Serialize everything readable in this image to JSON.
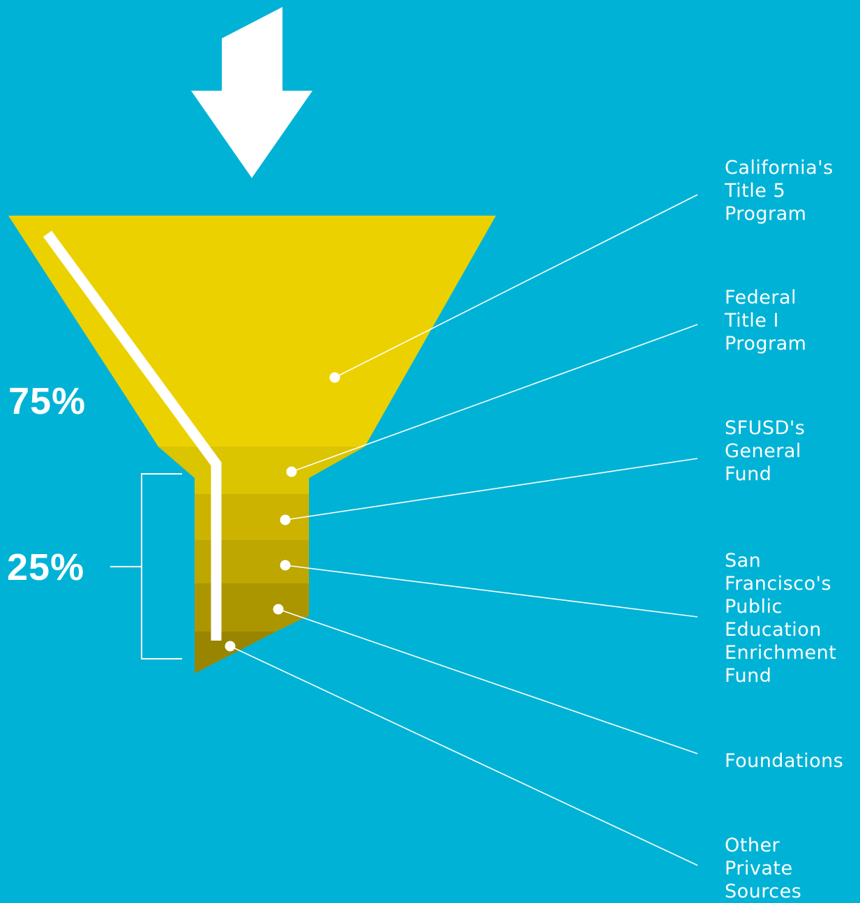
{
  "colors": {
    "background": "#00b3d6",
    "funnel_top": "#ecd100",
    "band_1": "#dbc400",
    "band_2": "#cbb300",
    "band_3": "#bda700",
    "band_4": "#ac9600",
    "band_5": "#9a8500",
    "accent": "#ffffff"
  },
  "percentages": {
    "top_share": "75%",
    "bottom_share": "25%"
  },
  "sources": [
    {
      "label": "California's\nTitle 5\nProgram"
    },
    {
      "label": "Federal\nTitle I\nProgram"
    },
    {
      "label": "SFUSD's\nGeneral\nFund"
    },
    {
      "label": "San\nFrancisco's\nPublic\nEducation\nEnrichment\nFund"
    },
    {
      "label": "Foundations"
    },
    {
      "label": "Other\nPrivate\nSources"
    }
  ]
}
